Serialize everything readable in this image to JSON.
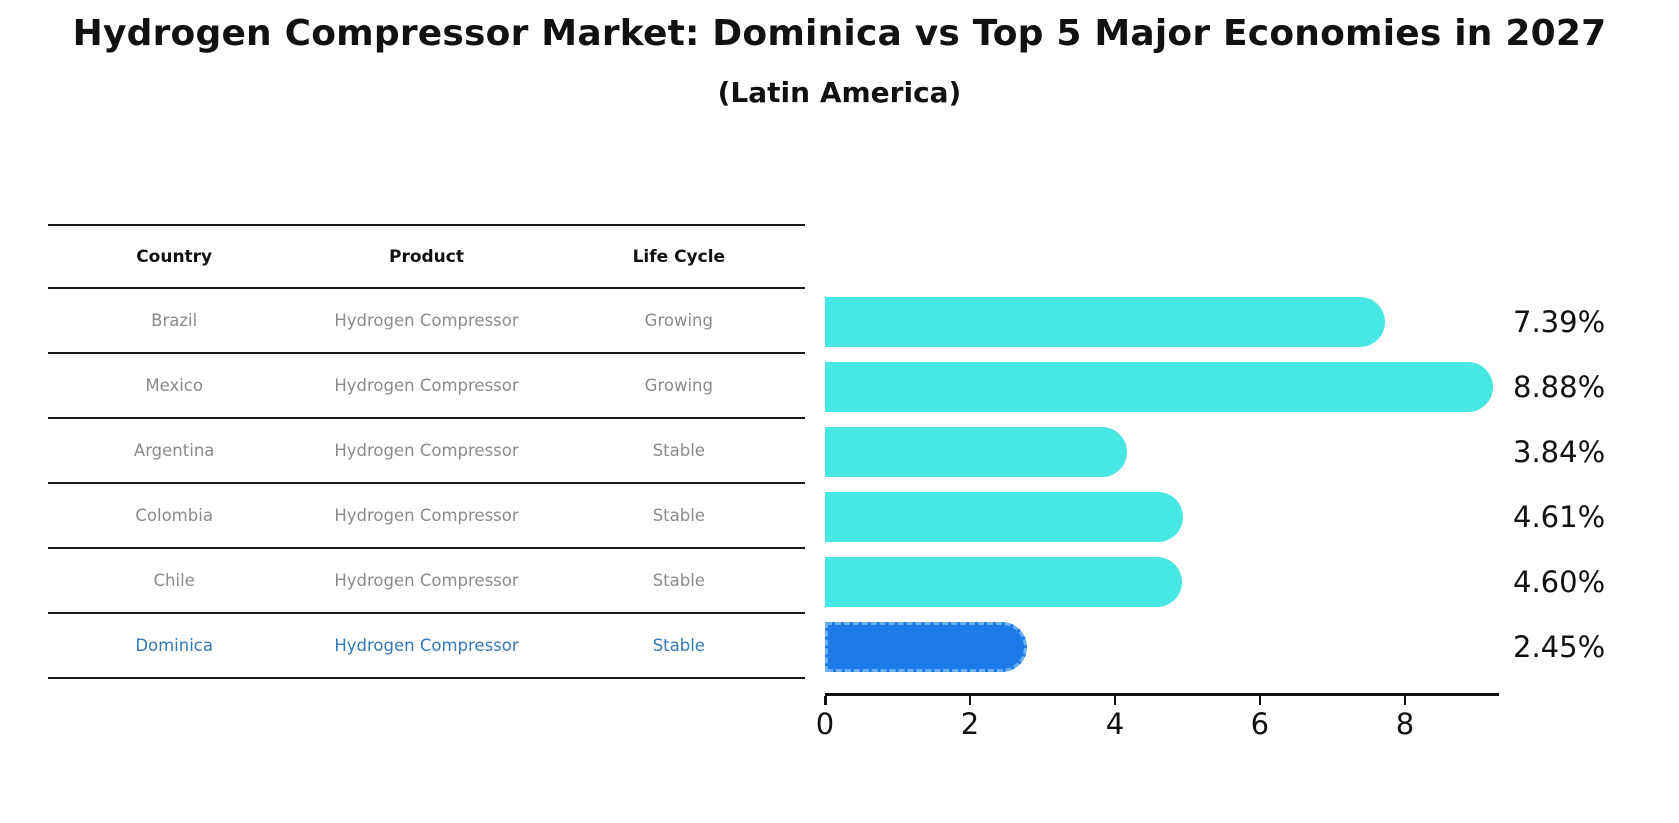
{
  "title": "Hydrogen Compressor Market: Dominica vs Top 5 Major Economies in 2027",
  "subtitle": "(Latin America)",
  "table": {
    "headers": [
      "Country",
      "Product",
      "Life Cycle"
    ],
    "rows": [
      {
        "country": "Brazil",
        "product": "Hydrogen Compressor",
        "life_cycle": "Growing",
        "highlight": false
      },
      {
        "country": "Mexico",
        "product": "Hydrogen Compressor",
        "life_cycle": "Growing",
        "highlight": false
      },
      {
        "country": "Argentina",
        "product": "Hydrogen Compressor",
        "life_cycle": "Stable",
        "highlight": false
      },
      {
        "country": "Colombia",
        "product": "Hydrogen Compressor",
        "life_cycle": "Stable",
        "highlight": false
      },
      {
        "country": "Chile",
        "product": "Hydrogen Compressor",
        "life_cycle": "Stable",
        "highlight": false
      },
      {
        "country": "Dominica",
        "product": "Hydrogen Compressor",
        "life_cycle": "Stable",
        "highlight": true
      }
    ]
  },
  "chart_data": {
    "type": "bar",
    "orientation": "horizontal",
    "title": "Hydrogen Compressor Market: Dominica vs Top 5 Major Economies in 2027",
    "subtitle": "(Latin America)",
    "categories": [
      "Brazil",
      "Mexico",
      "Argentina",
      "Colombia",
      "Chile",
      "Dominica"
    ],
    "values": [
      7.39,
      8.88,
      3.84,
      4.61,
      4.6,
      2.45
    ],
    "value_labels": [
      "7.39%",
      "8.88%",
      "3.84%",
      "4.61%",
      "4.60%",
      "2.45%"
    ],
    "xlabel": "",
    "ylabel": "",
    "xlim": [
      0,
      9.27
    ],
    "x_ticks": [
      "0",
      "2",
      "4",
      "6",
      "8"
    ],
    "grid": false,
    "legend": false,
    "bar_color": "#47e7e4",
    "highlight_index": 5,
    "highlight_bar_color": "#1e7ae6",
    "highlight_border_color": "#6cb0f4",
    "highlight_text_color": "#3179b7"
  }
}
